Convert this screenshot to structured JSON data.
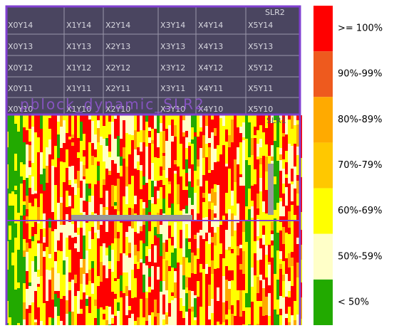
{
  "device_view": {
    "slr_labels": [
      "SLR2",
      "SLR1"
    ],
    "pblock_label": "pblock_dynamic_SLR2",
    "clock_regions": [
      [
        "X0Y14",
        "X1Y14",
        "X2Y14",
        "X3Y14",
        "X4Y14",
        "X5Y14"
      ],
      [
        "X0Y13",
        "X1Y13",
        "X2Y13",
        "X3Y13",
        "X4Y13",
        "X5Y13"
      ],
      [
        "X0Y12",
        "X1Y12",
        "X2Y12",
        "X3Y12",
        "X4Y12",
        "X5Y12"
      ],
      [
        "X0Y11",
        "X1Y11",
        "X2Y11",
        "X3Y11",
        "X4Y11",
        "X5Y11"
      ],
      [
        "X0Y10",
        "X1Y10",
        "X2Y10",
        "X3Y10",
        "X4Y10",
        "X5Y10"
      ]
    ]
  },
  "legend": {
    "items": [
      {
        "label": ">= 100%",
        "color": "#ff0000"
      },
      {
        "label": "90%-99%",
        "color": "#ee5a1e"
      },
      {
        "label": "80%-89%",
        "color": "#ffaa00"
      },
      {
        "label": "70%-79%",
        "color": "#ffc800"
      },
      {
        "label": "60%-69%",
        "color": "#ffff00"
      },
      {
        "label": "50%-59%",
        "color": "#ffffc8"
      },
      {
        "label": "< 50%",
        "color": "#22aa00"
      }
    ]
  }
}
